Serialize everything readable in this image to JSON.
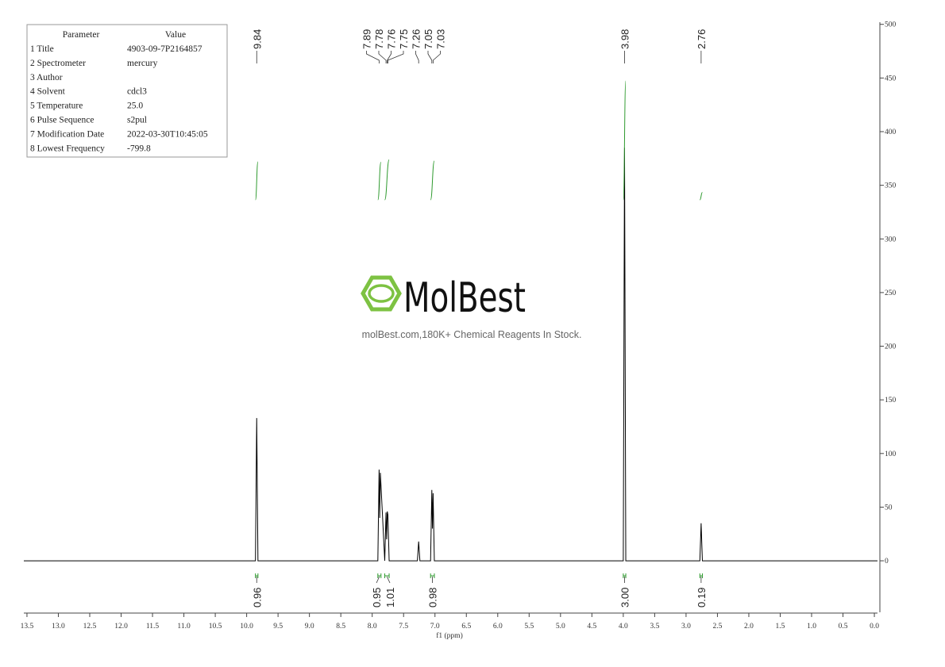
{
  "chart_data": {
    "type": "nmr",
    "x_label": "f1 (ppm)",
    "x": [
      13.55,
      9.86,
      9.84,
      9.82,
      7.91,
      7.89,
      7.88,
      7.87,
      7.8,
      7.78,
      7.77,
      7.76,
      7.75,
      7.73,
      7.28,
      7.26,
      7.24,
      7.07,
      7.05,
      7.04,
      7.03,
      7.01,
      4.0,
      3.98,
      3.96,
      2.78,
      2.76,
      2.74,
      -0.05
    ],
    "values": [
      0,
      0,
      133,
      0,
      0,
      85,
      40,
      82,
      0,
      45,
      20,
      46,
      43,
      0,
      0,
      18,
      0,
      0,
      66,
      30,
      63,
      0,
      0,
      385,
      0,
      0,
      35,
      0,
      0
    ],
    "color": "#000000",
    "xlim": [
      13.55,
      -0.05
    ],
    "xticks": [
      13.5,
      {
        "value": 13,
        "label": "13.0"
      },
      12.5,
      {
        "value": 12,
        "label": "12.0"
      },
      11.5,
      {
        "value": 11,
        "label": "11.0"
      },
      10.5,
      {
        "value": 10,
        "label": "10.0"
      },
      9.5,
      {
        "value": 9,
        "label": "9.0"
      },
      8.5,
      {
        "value": 8,
        "label": "8.0"
      },
      7.5,
      {
        "value": 7,
        "label": "7.0"
      },
      6.5,
      {
        "value": 6,
        "label": "6.0"
      },
      5.5,
      {
        "value": 5,
        "label": "5.0"
      },
      4.5,
      {
        "value": 4,
        "label": "4.0"
      },
      3.5,
      {
        "value": 3,
        "label": "3.0"
      },
      2.5,
      {
        "value": 2,
        "label": "2.0"
      },
      1.5,
      {
        "value": 1,
        "label": "1.0"
      },
      0.5,
      {
        "value": 0,
        "label": "0.0"
      }
    ],
    "ylim": [
      -48,
      502
    ],
    "yticks": [
      0,
      50,
      100,
      150,
      200,
      250,
      300,
      350,
      400,
      450,
      500
    ],
    "peaks": {
      "values": [
        9.84,
        7.89,
        7.78,
        7.76,
        7.75,
        7.26,
        7.05,
        7.03,
        3.98,
        2.76
      ]
    },
    "integrals": {
      "color": "#2e9a2e",
      "ranges": [
        [
          9.86,
          9.82
        ],
        [
          7.91,
          7.86
        ],
        [
          7.8,
          7.73
        ],
        [
          7.07,
          7.01
        ],
        [
          4.0,
          3.96
        ],
        [
          2.78,
          2.74
        ]
      ],
      "values": [
        0.96,
        0.95,
        1.01,
        0.98,
        3,
        0.19
      ],
      "value_labels": [
        "0.96",
        "0.95",
        "1.01",
        "0.98",
        "3.00",
        "0.19"
      ]
    }
  },
  "parameters": {
    "header": [
      "Parameter",
      "Value"
    ],
    "rows": [
      [
        "1 Title",
        "4903-09-7P2164857"
      ],
      [
        "2 Spectrometer",
        "mercury"
      ],
      [
        "3 Author"
      ],
      [
        "4 Solvent",
        "cdcl3"
      ],
      [
        "5 Temperature",
        "25.0"
      ],
      [
        "6 Pulse Sequence",
        "s2pul"
      ],
      [
        "7 Modification Date",
        "2022-03-30T10:45:05"
      ],
      [
        "8 Lowest Frequency",
        "-799.8"
      ]
    ]
  },
  "watermark": {
    "brand": "MolBest",
    "tagline": "molBest.com,180K+ Chemical Reagents In Stock."
  }
}
